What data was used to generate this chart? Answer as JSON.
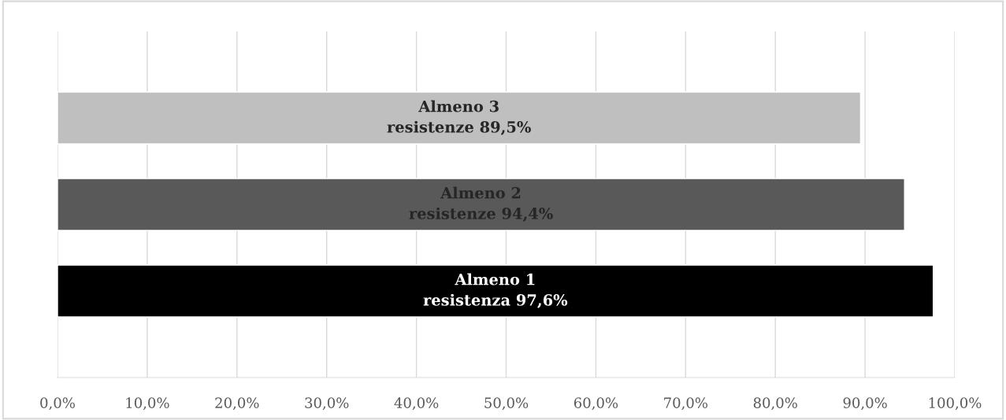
{
  "chart_data": {
    "type": "bar",
    "orientation": "horizontal",
    "categories": [
      null,
      null,
      null
    ],
    "values": [
      89.5,
      94.4,
      97.6
    ],
    "colors": [
      "#bfbfbf",
      "#595959",
      "#000000"
    ],
    "value_labels": [
      "Almeno 3\nresistenze 89,5%",
      "Almeno 2\nresistenze 94,4%",
      "Almeno 1\nresistenza 97,6%"
    ],
    "xlim": [
      0,
      100
    ],
    "xticks": [
      {
        "value": 0,
        "label": "0,0%"
      },
      {
        "value": 10,
        "label": "10,0%"
      },
      {
        "value": 20,
        "label": "20,0%"
      },
      {
        "value": 30,
        "label": "30,0%"
      },
      {
        "value": 40,
        "label": "40,0%"
      },
      {
        "value": 50,
        "label": "50,0%"
      },
      {
        "value": 60,
        "label": "60,0%"
      },
      {
        "value": 70,
        "label": "70,0%"
      },
      {
        "value": 80,
        "label": "80,0%"
      },
      {
        "value": 90,
        "label": "90,0%"
      },
      {
        "value": 100,
        "label": "100,0%"
      }
    ],
    "grid": "x"
  }
}
